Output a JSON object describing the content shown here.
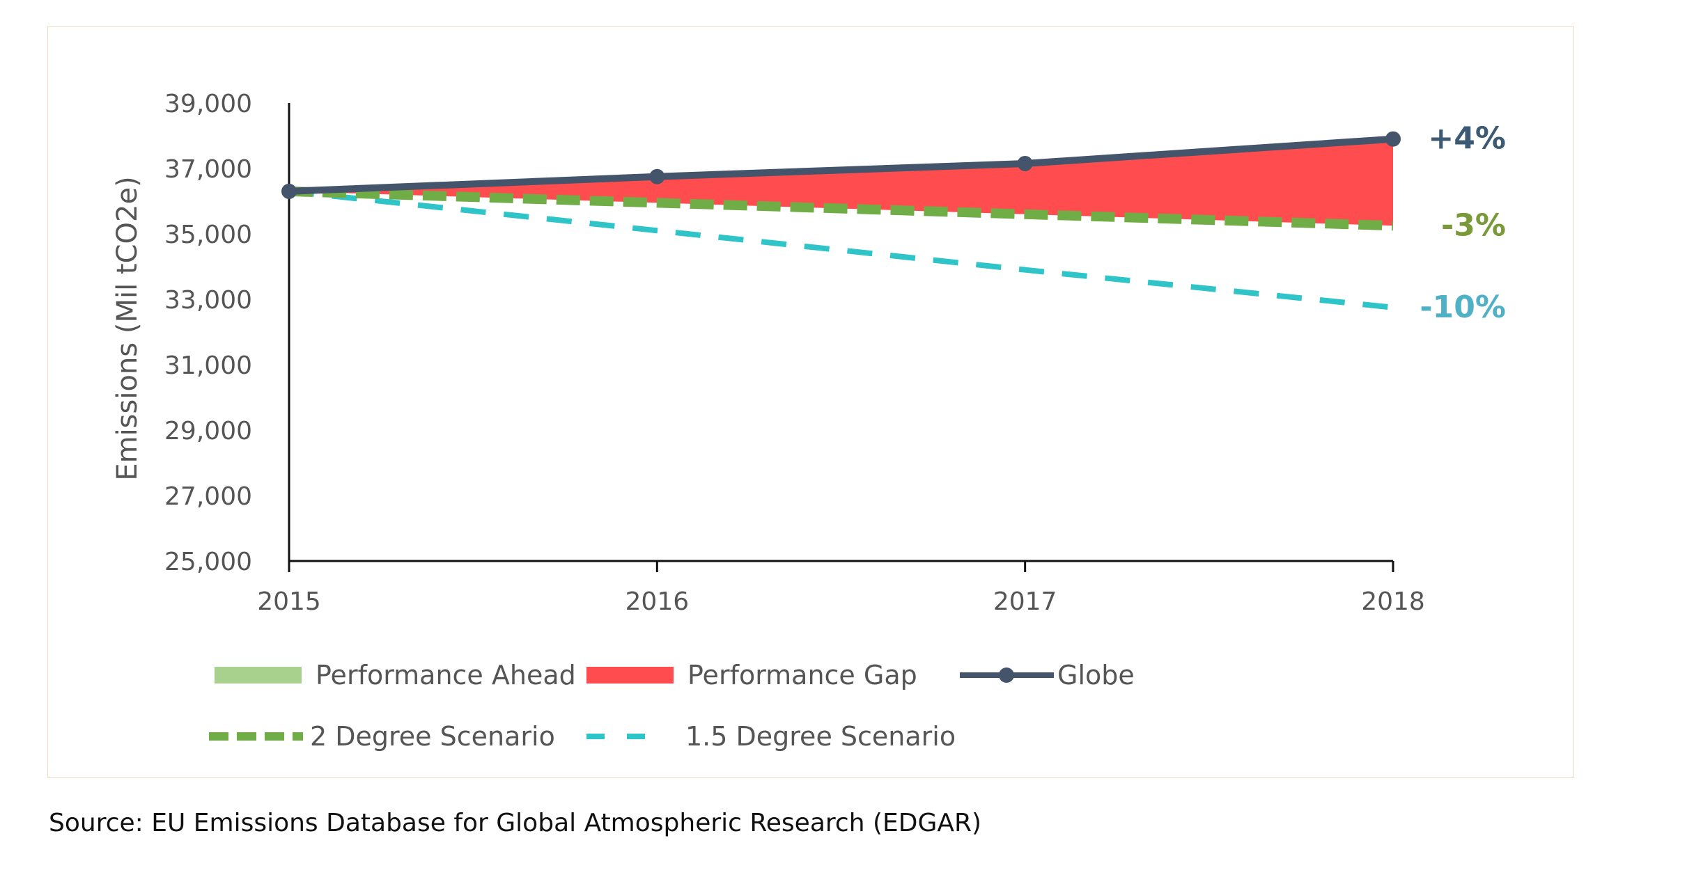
{
  "chart_data": {
    "type": "line",
    "title": "",
    "xlabel": "",
    "ylabel": "Emissions (Mil tCO2e)",
    "x": [
      2015,
      2016,
      2017,
      2018
    ],
    "x_tick_labels": [
      "2015",
      "2016",
      "2017",
      "2018"
    ],
    "ylim": [
      25000,
      39000
    ],
    "y_ticks": [
      25000,
      27000,
      29000,
      31000,
      33000,
      35000,
      37000,
      39000
    ],
    "y_tick_labels": [
      "25,000",
      "27,000",
      "29,000",
      "31,000",
      "33,000",
      "35,000",
      "37,000",
      "39,000"
    ],
    "grid": false,
    "series": [
      {
        "name": "Globe",
        "values": [
          36300,
          36750,
          37150,
          37900
        ],
        "color": "#44546a",
        "style": "solid-markers"
      },
      {
        "name": "2 Degree Scenario",
        "values": [
          36300,
          35950,
          35600,
          35250
        ],
        "color": "#70ad47",
        "style": "dashed"
      },
      {
        "name": "1.5 Degree Scenario",
        "values": [
          36300,
          35100,
          33900,
          32750
        ],
        "color": "#2ec4c8",
        "style": "dashed"
      }
    ],
    "areas": [
      {
        "name": "Performance Gap",
        "between": [
          "2 Degree Scenario",
          "Globe"
        ],
        "color": "#ff4d4f"
      },
      {
        "name": "Performance Ahead",
        "color": "#a9d18e"
      }
    ],
    "annotations": [
      {
        "text": "+4%",
        "series": "Globe",
        "color": "#3d5a75"
      },
      {
        "text": "-3%",
        "series": "2 Degree Scenario",
        "color": "#7a9a3a"
      },
      {
        "text": "-10%",
        "series": "1.5 Degree Scenario",
        "color": "#4fb0c6"
      }
    ],
    "legend": {
      "position": "bottom",
      "items": [
        {
          "label": "Performance Ahead",
          "kind": "area",
          "color": "#a9d18e"
        },
        {
          "label": "Performance Gap",
          "kind": "area",
          "color": "#ff4d4f"
        },
        {
          "label": "Globe",
          "kind": "line-marker",
          "color": "#44546a"
        },
        {
          "label": "2 Degree Scenario",
          "kind": "dashed",
          "color": "#70ad47"
        },
        {
          "label": "1.5 Degree Scenario",
          "kind": "dashed",
          "color": "#2ec4c8"
        }
      ]
    }
  },
  "source_text": "Source: EU Emissions Database for Global Atmospheric Research (EDGAR)"
}
